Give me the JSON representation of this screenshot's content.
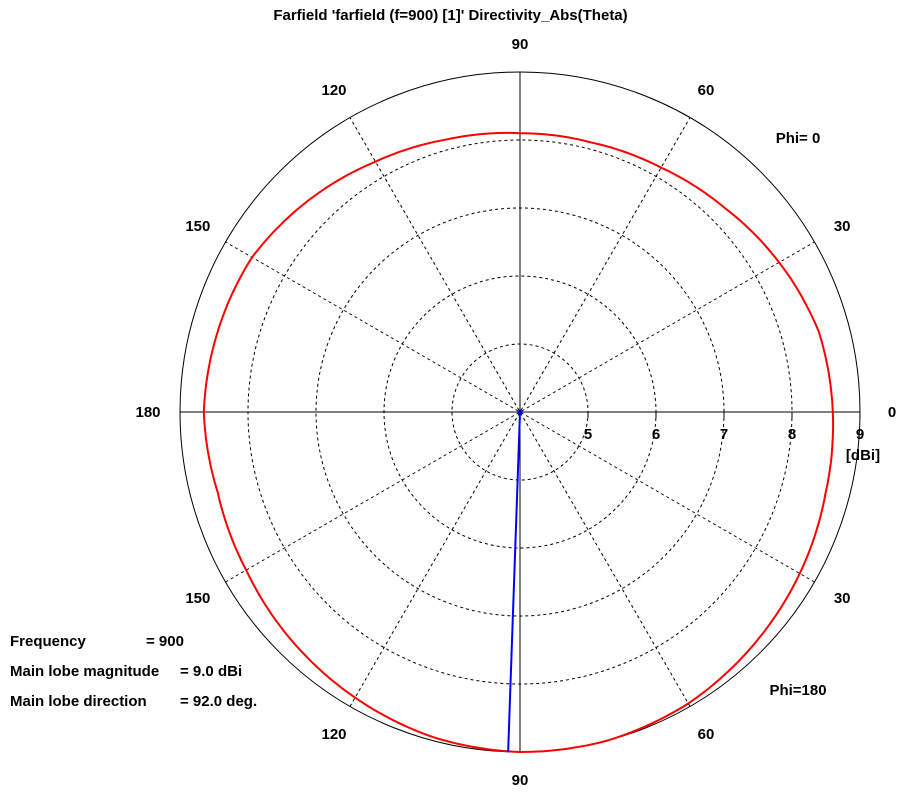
{
  "title": "Farfield 'farfield (f=900) [1]' Directivity_Abs(Theta)",
  "chart_data": {
    "type": "polar",
    "unit_label": "[dBi]",
    "radial_ticks": [
      "5",
      "6",
      "7",
      "8",
      "9"
    ],
    "radial_range_dbi": [
      4,
      9
    ],
    "angle_labels": {
      "top": "90",
      "bottom": "90",
      "upper_left_1": "120",
      "upper_left_2": "150",
      "upper_right_1": "60",
      "upper_right_2": "30",
      "left": "180",
      "right": "0",
      "lower_left_1": "150",
      "lower_left_2": "120",
      "lower_right_1": "30",
      "lower_right_2": "60"
    },
    "phi_top_label": "Phi=  0",
    "phi_bottom_label": "Phi=180",
    "grid": true,
    "series": [
      {
        "color": "#ff0000",
        "theta_deg": [
          0,
          15,
          30,
          45,
          60,
          75,
          90,
          105,
          120,
          135,
          150,
          165,
          180
        ],
        "phi0_dbi": [
          8.6,
          8.55,
          8.4,
          8.25,
          8.15,
          8.1,
          8.1,
          8.15,
          8.25,
          8.4,
          8.55,
          8.6,
          8.65
        ],
        "phi180_dbi": [
          8.6,
          8.65,
          8.75,
          8.85,
          8.95,
          9.0,
          9.0,
          8.95,
          8.85,
          8.75,
          8.65,
          8.6,
          8.65
        ]
      }
    ],
    "main_lobe_direction_deg": 92.0,
    "main_lobe_marker_color": "#0000ff"
  },
  "info": {
    "frequency_label": "Frequency",
    "frequency_value": "= 900",
    "magnitude_label": "Main lobe magnitude",
    "magnitude_value": "=   9.0 dBi",
    "direction_label": "Main lobe direction",
    "direction_value": "=  92.0 deg."
  }
}
